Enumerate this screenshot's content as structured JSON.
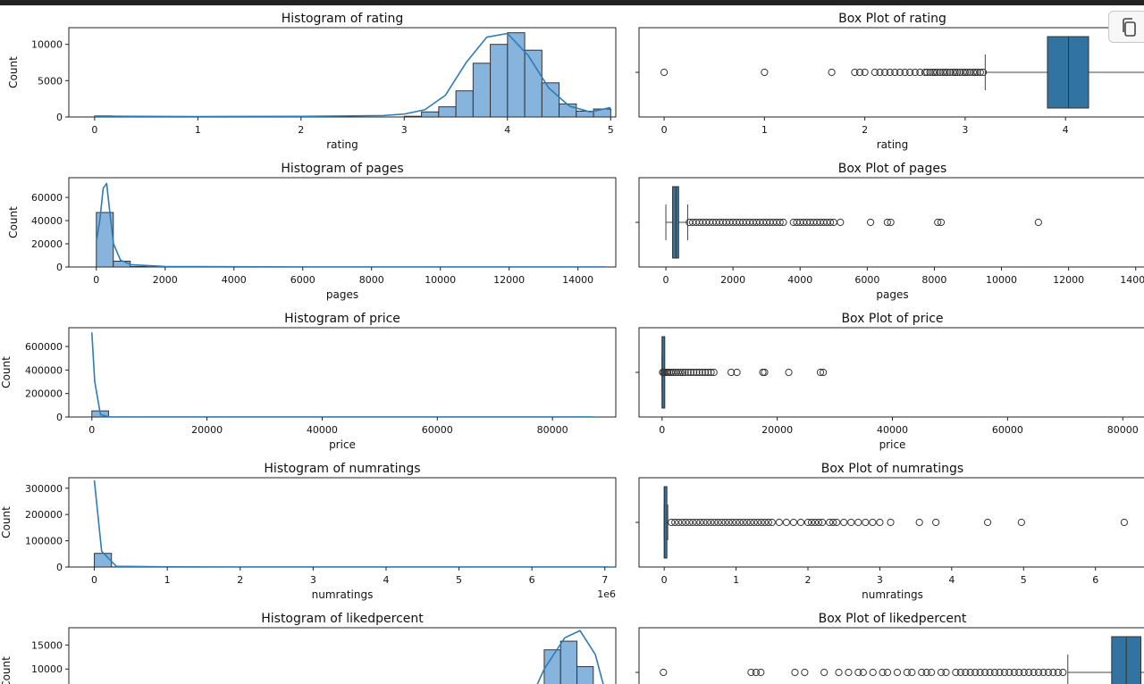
{
  "ui": {
    "copy_button": "copy-icon"
  },
  "colors": {
    "bar_fill": "#86b4dc",
    "kde_line": "#2f7bb6",
    "box_fill": "#3274a1",
    "edge": "#333333"
  },
  "chart_data": [
    {
      "type": "bar",
      "title": "Histogram of rating",
      "xlabel": "rating",
      "ylabel": "Count",
      "xlim": [
        -0.25,
        5.05
      ],
      "ylim": [
        0,
        12300
      ],
      "xticks": [
        0,
        1,
        2,
        3,
        4,
        5
      ],
      "yticks": [
        0,
        5000,
        10000
      ],
      "bins": {
        "start": 0,
        "width": 0.1667,
        "counts": [
          150,
          0,
          0,
          0,
          0,
          0,
          0,
          0,
          0,
          0,
          0,
          0,
          0,
          0,
          0,
          0,
          0,
          0,
          100,
          700,
          1400,
          3600,
          7400,
          10000,
          11600,
          9200,
          4700,
          1800,
          800,
          1100
        ]
      },
      "kde": {
        "x": [
          0,
          1,
          2,
          2.8,
          3.0,
          3.2,
          3.4,
          3.6,
          3.8,
          4.0,
          4.2,
          4.4,
          4.6,
          4.8,
          5.0
        ],
        "y": [
          120,
          60,
          80,
          200,
          400,
          1000,
          3000,
          7500,
          11000,
          11500,
          8500,
          4000,
          1500,
          700,
          1300
        ]
      }
    },
    {
      "type": "box",
      "title": "Box Plot of rating",
      "xlabel": "rating",
      "xlim": [
        -0.25,
        4.8
      ],
      "xticks": [
        0,
        1,
        2,
        3,
        4
      ],
      "box": {
        "q1": 3.82,
        "median": 4.03,
        "q3": 4.23,
        "whisker_low": 3.2,
        "whisker_high": 4.8
      },
      "outliers": [
        0,
        1,
        1.67,
        1.9,
        1.95,
        2.0,
        2.1,
        2.15,
        2.2,
        2.25,
        2.3,
        2.35,
        2.4,
        2.45,
        2.5,
        2.55,
        2.6,
        2.62,
        2.65,
        2.68,
        2.7,
        2.72,
        2.75,
        2.78,
        2.8,
        2.82,
        2.85,
        2.88,
        2.9,
        2.92,
        2.95,
        2.98,
        3.0,
        3.02,
        3.05,
        3.08,
        3.1,
        3.12,
        3.15,
        3.18
      ]
    },
    {
      "type": "bar",
      "title": "Histogram of pages",
      "xlabel": "pages",
      "ylabel": "Count",
      "xlim": [
        -800,
        15100
      ],
      "ylim": [
        0,
        77000
      ],
      "xticks": [
        0,
        2000,
        4000,
        6000,
        8000,
        10000,
        12000,
        14000
      ],
      "yticks": [
        0,
        20000,
        40000,
        60000
      ],
      "bins": {
        "start": 0,
        "width": 493,
        "counts": [
          47000,
          5000,
          400,
          150,
          80,
          40,
          20,
          10,
          5,
          5,
          5,
          5,
          5,
          5,
          5,
          5,
          3,
          3,
          2,
          2,
          2,
          1,
          1,
          1,
          1,
          1,
          1,
          1,
          1,
          1
        ]
      },
      "kde": {
        "x": [
          0,
          100,
          200,
          300,
          400,
          500,
          700,
          1000,
          2000,
          6000,
          14800
        ],
        "y": [
          22000,
          40000,
          68000,
          72000,
          45000,
          20000,
          6000,
          2000,
          400,
          100,
          50
        ]
      }
    },
    {
      "type": "box",
      "title": "Box Plot of pages",
      "xlabel": "pages",
      "xlim": [
        -800,
        14300
      ],
      "xticks": [
        0,
        2000,
        4000,
        6000,
        8000,
        10000,
        12000,
        14000
      ],
      "box": {
        "q1": 200,
        "median": 300,
        "q3": 380,
        "whisker_low": 0,
        "whisker_high": 650
      },
      "outliers": [
        700,
        800,
        900,
        1000,
        1100,
        1200,
        1300,
        1400,
        1500,
        1600,
        1700,
        1800,
        1900,
        2000,
        2100,
        2200,
        2300,
        2400,
        2500,
        2600,
        2700,
        2800,
        2900,
        3000,
        3100,
        3200,
        3300,
        3400,
        3500,
        3800,
        3900,
        4000,
        4100,
        4200,
        4300,
        4400,
        4500,
        4600,
        4700,
        4800,
        4900,
        5000,
        5200,
        6100,
        6600,
        6700,
        8100,
        8200,
        11100
      ]
    },
    {
      "type": "bar",
      "title": "Histogram of price",
      "xlabel": "price",
      "ylabel": "Count",
      "xlim": [
        -4000,
        91000
      ],
      "ylim": [
        0,
        760000
      ],
      "xticks": [
        0,
        20000,
        40000,
        60000,
        80000
      ],
      "yticks": [
        0,
        200000,
        400000,
        600000
      ],
      "bins": {
        "start": 0,
        "width": 2900,
        "counts": [
          52000,
          200,
          50,
          20,
          5,
          2,
          2,
          1,
          1,
          1
        ]
      },
      "kde": {
        "x": [
          0,
          500,
          1500,
          3000,
          10000,
          87000
        ],
        "y": [
          720000,
          300000,
          20000,
          1000,
          200,
          100
        ]
      }
    },
    {
      "type": "box",
      "title": "Box Plot of price",
      "xlabel": "price",
      "xlim": [
        -4000,
        84000
      ],
      "xticks": [
        0,
        20000,
        40000,
        60000,
        80000
      ],
      "box": {
        "q1": 3,
        "median": 8,
        "q3": 14,
        "whisker_low": 0,
        "whisker_high": 30
      },
      "outliers": [
        100,
        300,
        500,
        800,
        1000,
        1300,
        1600,
        2000,
        2400,
        2800,
        3200,
        3600,
        4000,
        4500,
        5000,
        5500,
        6000,
        6500,
        7000,
        7500,
        8000,
        8500,
        9000,
        12000,
        13000,
        17500,
        17800,
        22000,
        27500,
        28000
      ]
    },
    {
      "type": "bar",
      "title": "Histogram of numratings",
      "xlabel": "numratings",
      "ylabel": "Count",
      "xlim": [
        -0.35,
        7.15
      ],
      "ylim": [
        0,
        340000
      ],
      "xticks": [
        0,
        1,
        2,
        3,
        4,
        5,
        6,
        7
      ],
      "yticks": [
        0,
        100000,
        200000,
        300000
      ],
      "offset_label": "1e6",
      "bins": {
        "start": 0,
        "width": 0.235,
        "counts": [
          52000,
          400,
          80,
          30,
          10,
          5,
          3,
          2,
          1,
          1
        ]
      },
      "kde": {
        "x": [
          0,
          0.1,
          0.3,
          1,
          3,
          7.05
        ],
        "y": [
          330000,
          60000,
          3000,
          500,
          200,
          100
        ]
      }
    },
    {
      "type": "box",
      "title": "Box Plot of numratings",
      "xlabel": "numratings",
      "xlim": [
        -0.35,
        6.7
      ],
      "xticks": [
        0,
        1,
        2,
        3,
        4,
        5,
        6
      ],
      "box": {
        "q1": 0.0003,
        "median": 0.002,
        "q3": 0.02,
        "whisker_low": 0,
        "whisker_high": 0.05
      },
      "outliers": [
        0.1,
        0.15,
        0.2,
        0.25,
        0.3,
        0.35,
        0.4,
        0.45,
        0.5,
        0.55,
        0.6,
        0.65,
        0.7,
        0.75,
        0.8,
        0.85,
        0.9,
        0.95,
        1.0,
        1.05,
        1.1,
        1.15,
        1.2,
        1.25,
        1.3,
        1.35,
        1.4,
        1.45,
        1.5,
        1.6,
        1.7,
        1.8,
        1.9,
        2.0,
        2.05,
        2.1,
        2.15,
        2.2,
        2.3,
        2.35,
        2.4,
        2.5,
        2.6,
        2.7,
        2.8,
        2.9,
        3.0,
        3.15,
        3.55,
        3.78,
        4.5,
        4.97,
        6.4
      ]
    },
    {
      "type": "bar",
      "title": "Histogram of likedpercent",
      "ylabel": "Count",
      "xlim": [
        -5,
        102
      ],
      "ylim": [
        0,
        18600
      ],
      "yticks": [
        10000,
        15000
      ],
      "bins": {
        "start": 88,
        "width": 3.2,
        "counts": [
          14000,
          15800,
          10500
        ]
      },
      "kde": {
        "x": [
          85,
          88,
          92,
          95,
          98,
          100
        ],
        "y": [
          3000,
          10000,
          16500,
          18000,
          13000,
          5000
        ]
      }
    },
    {
      "type": "box",
      "title": "Box Plot of likedpercent",
      "xlim": [
        -5,
        99
      ],
      "box": {
        "q1": 92,
        "median": 95,
        "q3": 98,
        "whisker_low": 83,
        "whisker_high": 100
      },
      "outliers": [
        0,
        18,
        19,
        20,
        27,
        29,
        33,
        36,
        38,
        40,
        41,
        43,
        45,
        46,
        48,
        50,
        51,
        53,
        54,
        55,
        57,
        58,
        60,
        61,
        62,
        63,
        64,
        65,
        66,
        67,
        68,
        69,
        70,
        71,
        72,
        73,
        74,
        75,
        76,
        77,
        78,
        79,
        80,
        81,
        82
      ]
    }
  ]
}
